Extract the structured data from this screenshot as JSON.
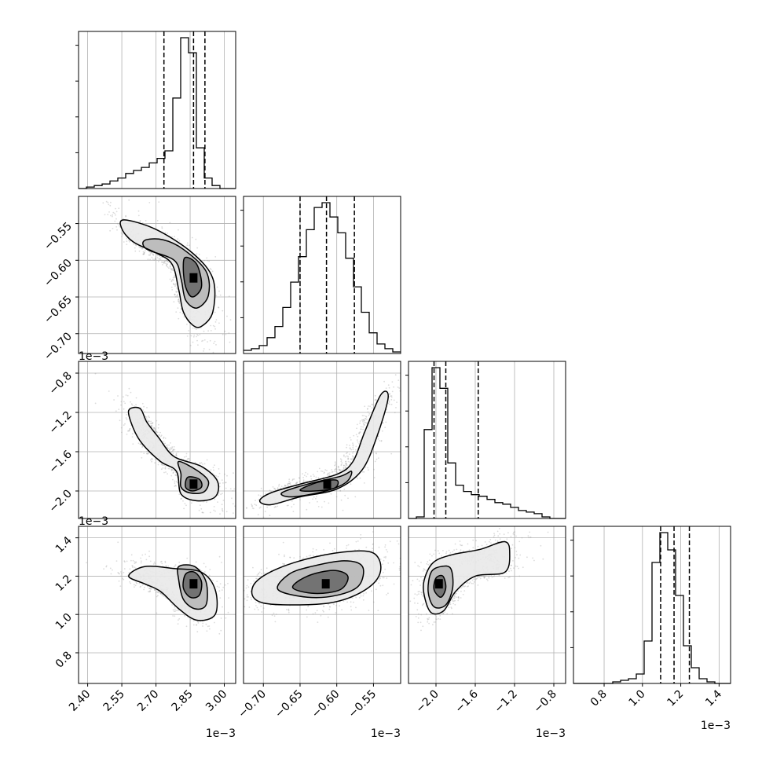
{
  "chart_data": {
    "type": "corner",
    "grid": true,
    "params": [
      {
        "range": [
          2.36,
          3.05
        ],
        "ticks": [
          2.4,
          2.55,
          2.7,
          2.85,
          3.0
        ],
        "tick_labels": [
          "2.40",
          "2.55",
          "2.70",
          "2.85",
          "3.00"
        ],
        "offset": "1e−3"
      },
      {
        "range": [
          -0.727,
          -0.513
        ],
        "ticks": [
          -0.7,
          -0.65,
          -0.6,
          -0.55
        ],
        "tick_labels": [
          "−0.70",
          "−0.65",
          "−0.60",
          "−0.55"
        ],
        "offset": "1e−3"
      },
      {
        "range": [
          -2.28,
          -0.68
        ],
        "ticks": [
          -2.0,
          -1.6,
          -1.2,
          -0.8
        ],
        "tick_labels": [
          "−2.0",
          "−1.6",
          "−1.2",
          "−0.8"
        ],
        "offset": "1e−3"
      },
      {
        "range": [
          0.64,
          1.46
        ],
        "ticks": [
          0.8,
          1.0,
          1.2,
          1.4
        ],
        "tick_labels": [
          "0.8",
          "1.0",
          "1.2",
          "1.4"
        ],
        "offset": "1e−3"
      }
    ],
    "histograms": [
      {
        "quantiles": [
          2.735,
          2.865,
          2.915
        ],
        "edges_start": 2.36,
        "bin_width": 0.0345,
        "counts": [
          0,
          1,
          2,
          3,
          5,
          7,
          10,
          12,
          14,
          17,
          20,
          25,
          60,
          100,
          90,
          27,
          7,
          2,
          0,
          0
        ]
      },
      {
        "quantiles": [
          -0.65,
          -0.614,
          -0.576
        ],
        "edges_start": -0.727,
        "bin_width": 0.0107,
        "counts": [
          2,
          3,
          5,
          10,
          17,
          29,
          45,
          61,
          78,
          92,
          95,
          86,
          76,
          60,
          42,
          26,
          13,
          6,
          3,
          1
        ]
      },
      {
        "quantiles": [
          -2.02,
          -1.9,
          -1.57
        ],
        "edges_start": -2.28,
        "bin_width": 0.08,
        "counts": [
          0,
          1,
          56,
          95,
          82,
          35,
          21,
          17,
          15,
          14,
          12,
          10,
          9,
          7,
          5,
          4,
          3,
          1,
          0,
          0
        ]
      },
      {
        "quantiles": [
          1.095,
          1.165,
          1.245
        ],
        "edges_start": 0.64,
        "bin_width": 0.041,
        "counts": [
          0,
          0,
          0,
          0,
          0,
          1,
          2,
          3,
          6,
          27,
          77,
          96,
          85,
          56,
          24,
          10,
          3,
          1,
          0,
          0
        ]
      }
    ],
    "contours": [
      {
        "row": 1,
        "col": 0,
        "levels": [
          [
            [
              2.56,
              -0.545
            ],
            [
              2.7,
              -0.558
            ],
            [
              2.86,
              -0.59
            ],
            [
              2.95,
              -0.625
            ],
            [
              2.95,
              -0.67
            ],
            [
              2.9,
              -0.69
            ],
            [
              2.86,
              -0.688
            ],
            [
              2.82,
              -0.67
            ],
            [
              2.8,
              -0.64
            ],
            [
              2.77,
              -0.605
            ],
            [
              2.7,
              -0.59
            ],
            [
              2.6,
              -0.575
            ],
            [
              2.55,
              -0.557
            ]
          ],
          [
            [
              2.65,
              -0.573
            ],
            [
              2.73,
              -0.572
            ],
            [
              2.82,
              -0.585
            ],
            [
              2.92,
              -0.615
            ],
            [
              2.93,
              -0.648
            ],
            [
              2.88,
              -0.665
            ],
            [
              2.83,
              -0.654
            ],
            [
              2.81,
              -0.625
            ],
            [
              2.78,
              -0.6
            ],
            [
              2.66,
              -0.585
            ]
          ],
          [
            [
              2.83,
              -0.596
            ],
            [
              2.88,
              -0.606
            ],
            [
              2.9,
              -0.636
            ],
            [
              2.86,
              -0.65
            ],
            [
              2.83,
              -0.636
            ],
            [
              2.82,
              -0.61
            ]
          ]
        ],
        "core": [
          2.865,
          -0.624
        ]
      },
      {
        "row": 2,
        "col": 0,
        "levels": [
          [
            [
              2.58,
              -1.18
            ],
            [
              2.63,
              -1.16
            ],
            [
              2.66,
              -1.3
            ],
            [
              2.71,
              -1.45
            ],
            [
              2.78,
              -1.65
            ],
            [
              2.9,
              -1.75
            ],
            [
              2.97,
              -1.9
            ],
            [
              2.96,
              -2.06
            ],
            [
              2.88,
              -2.1
            ],
            [
              2.81,
              -2.03
            ],
            [
              2.79,
              -1.8
            ],
            [
              2.72,
              -1.7
            ],
            [
              2.64,
              -1.52
            ],
            [
              2.6,
              -1.36
            ]
          ],
          [
            [
              2.8,
              -1.7
            ],
            [
              2.88,
              -1.79
            ],
            [
              2.93,
              -1.9
            ],
            [
              2.91,
              -2.01
            ],
            [
              2.85,
              -2.02
            ],
            [
              2.81,
              -1.96
            ],
            [
              2.81,
              -1.83
            ]
          ],
          [
            [
              2.84,
              -1.86
            ],
            [
              2.89,
              -1.88
            ],
            [
              2.9,
              -1.96
            ],
            [
              2.86,
              -2.0
            ],
            [
              2.83,
              -1.96
            ]
          ]
        ],
        "core": [
          2.865,
          -1.93
        ]
      },
      {
        "row": 2,
        "col": 1,
        "levels": [
          [
            [
              -0.705,
              -2.1
            ],
            [
              -0.69,
              -2.02
            ],
            [
              -0.65,
              -1.93
            ],
            [
              -0.6,
              -1.83
            ],
            [
              -0.578,
              -1.7
            ],
            [
              -0.562,
              -1.4
            ],
            [
              -0.54,
              -1.02
            ],
            [
              -0.53,
              -1.05
            ],
            [
              -0.546,
              -1.46
            ],
            [
              -0.566,
              -1.79
            ],
            [
              -0.6,
              -1.98
            ],
            [
              -0.65,
              -2.06
            ],
            [
              -0.69,
              -2.14
            ]
          ],
          [
            [
              -0.675,
              -2.02
            ],
            [
              -0.64,
              -1.93
            ],
            [
              -0.595,
              -1.85
            ],
            [
              -0.58,
              -1.8
            ],
            [
              -0.587,
              -1.91
            ],
            [
              -0.615,
              -2.0
            ],
            [
              -0.66,
              -2.06
            ]
          ],
          [
            [
              -0.65,
              -1.99
            ],
            [
              -0.625,
              -1.91
            ],
            [
              -0.6,
              -1.89
            ],
            [
              -0.603,
              -1.97
            ],
            [
              -0.63,
              -2.0
            ]
          ]
        ],
        "core": [
          -0.613,
          -1.93
        ]
      },
      {
        "row": 3,
        "col": 0,
        "levels": [
          [
            [
              2.58,
              1.2
            ],
            [
              2.65,
              1.25
            ],
            [
              2.78,
              1.24
            ],
            [
              2.9,
              1.22
            ],
            [
              2.96,
              1.13
            ],
            [
              2.96,
              1.0
            ],
            [
              2.88,
              0.97
            ],
            [
              2.8,
              1.03
            ],
            [
              2.72,
              1.12
            ],
            [
              2.65,
              1.16
            ]
          ],
          [
            [
              2.8,
              1.25
            ],
            [
              2.87,
              1.25
            ],
            [
              2.92,
              1.17
            ],
            [
              2.92,
              1.05
            ],
            [
              2.87,
              1.03
            ],
            [
              2.82,
              1.08
            ],
            [
              2.8,
              1.18
            ]
          ],
          [
            [
              2.83,
              1.21
            ],
            [
              2.87,
              1.22
            ],
            [
              2.9,
              1.17
            ],
            [
              2.89,
              1.1
            ],
            [
              2.85,
              1.09
            ],
            [
              2.82,
              1.14
            ]
          ]
        ],
        "core": [
          2.865,
          1.16
        ]
      },
      {
        "row": 3,
        "col": 1,
        "levels": [
          [
            [
              -0.715,
              1.1
            ],
            [
              -0.71,
              1.17
            ],
            [
              -0.68,
              1.24
            ],
            [
              -0.63,
              1.3
            ],
            [
              -0.58,
              1.33
            ],
            [
              -0.55,
              1.32
            ],
            [
              -0.54,
              1.25
            ],
            [
              -0.548,
              1.17
            ],
            [
              -0.575,
              1.1
            ],
            [
              -0.61,
              1.06
            ],
            [
              -0.66,
              1.05
            ],
            [
              -0.7,
              1.06
            ]
          ],
          [
            [
              -0.68,
              1.13
            ],
            [
              -0.665,
              1.21
            ],
            [
              -0.635,
              1.25
            ],
            [
              -0.59,
              1.28
            ],
            [
              -0.565,
              1.25
            ],
            [
              -0.57,
              1.15
            ],
            [
              -0.6,
              1.1
            ],
            [
              -0.64,
              1.09
            ]
          ],
          [
            [
              -0.66,
              1.14
            ],
            [
              -0.64,
              1.2
            ],
            [
              -0.605,
              1.23
            ],
            [
              -0.585,
              1.2
            ],
            [
              -0.595,
              1.13
            ],
            [
              -0.63,
              1.11
            ]
          ]
        ],
        "core": [
          -0.615,
          1.16
        ]
      },
      {
        "row": 3,
        "col": 2,
        "levels": [
          [
            [
              -2.12,
              1.1
            ],
            [
              -2.12,
              1.18
            ],
            [
              -2.03,
              1.27
            ],
            [
              -1.85,
              1.31
            ],
            [
              -1.55,
              1.34
            ],
            [
              -1.3,
              1.38
            ],
            [
              -1.25,
              1.32
            ],
            [
              -1.3,
              1.22
            ],
            [
              -1.6,
              1.2
            ],
            [
              -1.8,
              1.12
            ],
            [
              -1.92,
              1.02
            ],
            [
              -2.05,
              1.01
            ]
          ],
          [
            [
              -2.08,
              1.12
            ],
            [
              -2.05,
              1.22
            ],
            [
              -1.95,
              1.25
            ],
            [
              -1.85,
              1.24
            ],
            [
              -1.83,
              1.14
            ],
            [
              -1.9,
              1.05
            ],
            [
              -2.02,
              1.04
            ]
          ],
          [
            [
              -2.02,
              1.13
            ],
            [
              -2.0,
              1.19
            ],
            [
              -1.93,
              1.2
            ],
            [
              -1.9,
              1.14
            ],
            [
              -1.95,
              1.09
            ]
          ]
        ],
        "core": [
          -1.97,
          1.16
        ]
      }
    ]
  }
}
